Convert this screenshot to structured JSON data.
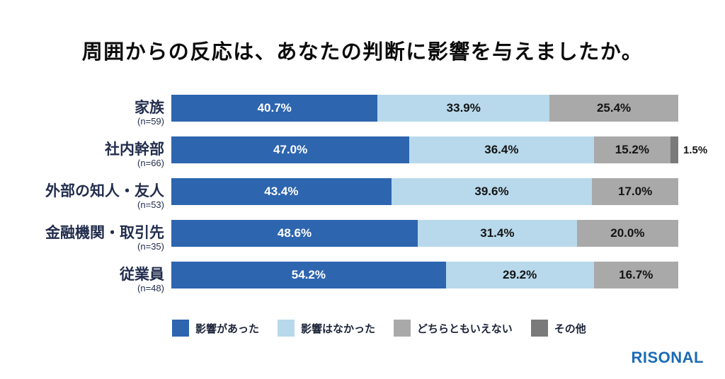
{
  "title": "周囲からの反応は、あなたの判断に影響を与えましたか。",
  "logo": "RISONAL",
  "colors": {
    "dark_blue": "#2d65af",
    "light_blue": "#b8d9eb",
    "gray": "#a9a9a9",
    "dark_gray": "#7a7a7a",
    "label_navy": "#232e4e",
    "logo_blue": "#1b6bb5"
  },
  "legend": [
    {
      "label": "影響があった",
      "color": "#2d65af"
    },
    {
      "label": "影響はなかった",
      "color": "#b8d9eb"
    },
    {
      "label": "どちらともいえない",
      "color": "#a9a9a9"
    },
    {
      "label": "その他",
      "color": "#7a7a7a"
    }
  ],
  "chart_data": {
    "type": "bar",
    "orientation": "horizontal",
    "stacked": true,
    "title": "周囲からの反応は、あなたの判断に影響を与えましたか。",
    "categories": [
      "家族",
      "社内幹部",
      "外部の知人・友人",
      "金融機関・取引先",
      "従業員"
    ],
    "sample_sizes": [
      "(n=59)",
      "(n=66)",
      "(n=53)",
      "(n=35)",
      "(n=48)"
    ],
    "xlim": [
      0,
      100
    ],
    "value_suffix": "%",
    "series": [
      {
        "name": "影響があった",
        "color": "#2d65af",
        "label_color": "#ffffff",
        "values": [
          40.7,
          47.0,
          43.4,
          48.6,
          54.2
        ],
        "labels": [
          "40.7%",
          "47.0%",
          "43.4%",
          "48.6%",
          "54.2%"
        ]
      },
      {
        "name": "影響はなかった",
        "color": "#b8d9eb",
        "label_color": "#141414",
        "values": [
          33.9,
          36.4,
          39.6,
          31.4,
          29.2
        ],
        "labels": [
          "33.9%",
          "36.4%",
          "39.6%",
          "31.4%",
          "29.2%"
        ]
      },
      {
        "name": "どちらともいえない",
        "color": "#a9a9a9",
        "label_color": "#141414",
        "values": [
          25.4,
          15.2,
          17.0,
          20.0,
          16.7
        ],
        "labels": [
          "25.4%",
          "15.2%",
          "17.0%",
          "20.0%",
          "16.7%"
        ]
      },
      {
        "name": "その他",
        "color": "#7a7a7a",
        "label_color": "#141414",
        "values": [
          0,
          1.5,
          0,
          0,
          0
        ],
        "labels": [
          "",
          "1.5%",
          "",
          "",
          ""
        ]
      }
    ]
  }
}
